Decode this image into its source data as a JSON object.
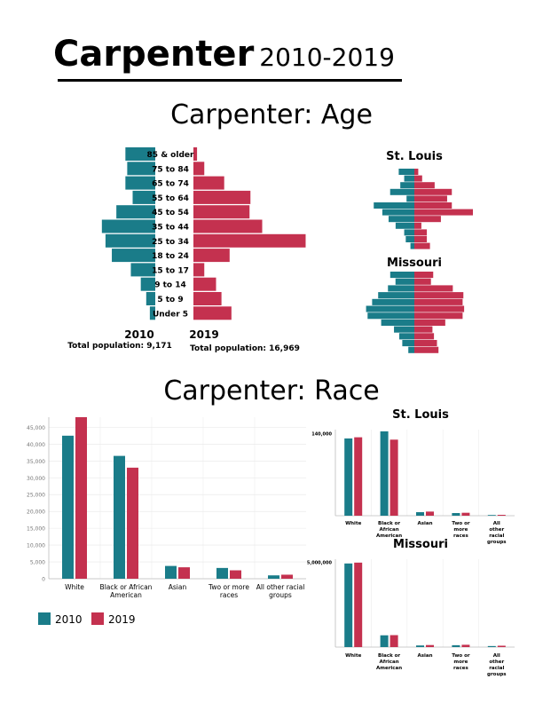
{
  "colors": {
    "c2010": "#1a7c89",
    "c2019": "#c4314f"
  },
  "header": {
    "name": "Carpenter",
    "years": "2010-2019"
  },
  "age_section": {
    "title": "Carpenter: Age"
  },
  "race_section": {
    "title": "Carpenter: Race"
  },
  "chart_data": [
    {
      "id": "carpenter-age",
      "type": "bar",
      "orientation": "population-pyramid",
      "categories": [
        "85 & older",
        "75 to 84",
        "65 to 74",
        "55 to 64",
        "45 to 54",
        "35 to 44",
        "25 to 34",
        "18 to 24",
        "15 to 17",
        "9 to 14",
        "5 to 9",
        "Under 5"
      ],
      "series": [
        {
          "name": "2010",
          "values": [
            3.3,
            3.1,
            3.3,
            2.5,
            4.3,
            5.9,
            5.5,
            4.8,
            2.7,
            1.6,
            1.0,
            0.6
          ]
        },
        {
          "name": "2019",
          "values": [
            0.4,
            1.2,
            3.4,
            6.3,
            6.2,
            7.6,
            12.4,
            4.0,
            1.2,
            2.5,
            3.1,
            4.2
          ]
        }
      ],
      "totals": [
        "Total population: 9,171",
        "Total population: 16,969"
      ]
    },
    {
      "id": "stlouis-age",
      "type": "bar",
      "orientation": "population-pyramid",
      "title": "St. Louis",
      "categories": [
        "85 & older",
        "75 to 84",
        "65 to 74",
        "55 to 64",
        "45 to 54",
        "35 to 44",
        "25 to 34",
        "18 to 24",
        "15 to 17",
        "9 to 14",
        "5 to 9",
        "Under 5"
      ],
      "series": [
        {
          "name": "2010",
          "values": [
            2.0,
            1.3,
            1.8,
            3.1,
            1.0,
            5.2,
            4.1,
            3.3,
            2.4,
            1.3,
            1.1,
            0.5
          ]
        },
        {
          "name": "2019",
          "values": [
            0.5,
            1.0,
            2.6,
            4.8,
            4.2,
            4.8,
            7.5,
            3.4,
            0.9,
            1.6,
            1.6,
            2.0
          ]
        }
      ]
    },
    {
      "id": "missouri-age",
      "type": "bar",
      "orientation": "population-pyramid",
      "title": "Missouri",
      "categories": [
        "85 & older",
        "75 to 84",
        "65 to 74",
        "55 to 64",
        "45 to 54",
        "35 to 44",
        "25 to 34",
        "18 to 24",
        "15 to 17",
        "9 to 14",
        "5 to 9",
        "Under 5"
      ],
      "series": [
        {
          "name": "2010",
          "values": [
            3.2,
            2.5,
            3.5,
            4.8,
            5.6,
            6.4,
            6.2,
            4.4,
            2.7,
            2.0,
            1.6,
            0.8
          ]
        },
        {
          "name": "2019",
          "values": [
            2.5,
            2.2,
            5.1,
            6.5,
            6.4,
            6.6,
            6.4,
            4.1,
            2.4,
            2.6,
            3.0,
            3.2
          ]
        }
      ]
    },
    {
      "id": "carpenter-race",
      "type": "bar",
      "categories": [
        "White",
        "Black or African American",
        "Asian",
        "Two or more races",
        "All other racial groups"
      ],
      "series": [
        {
          "name": "2010",
          "values": [
            42500,
            36500,
            3800,
            3200,
            1000
          ]
        },
        {
          "name": "2019",
          "values": [
            48000,
            33000,
            3400,
            2500,
            1200
          ]
        }
      ],
      "yticks": [
        "0",
        "5,000",
        "10,000",
        "15,000",
        "20,000",
        "25,000",
        "30,000",
        "35,000",
        "40,000",
        "45,000"
      ],
      "ylim": [
        0,
        48000
      ],
      "legend": [
        "2010",
        "2019"
      ]
    },
    {
      "id": "stlouis-race",
      "type": "bar",
      "title": "St. Louis",
      "categories": [
        "White",
        "Black or African American",
        "Asian",
        "Two or more races",
        "All other racial groups"
      ],
      "series": [
        {
          "name": "2010",
          "values": [
            131000,
            143000,
            6000,
            4500,
            1200
          ]
        },
        {
          "name": "2019",
          "values": [
            133000,
            129000,
            7000,
            5000,
            1500
          ]
        }
      ],
      "yticks": [
        "140,000"
      ],
      "ylim": [
        0,
        146000
      ]
    },
    {
      "id": "missouri-race",
      "type": "bar",
      "title": "Missouri",
      "categories": [
        "White",
        "Black or African American",
        "Asian",
        "Two or more races",
        "All other racial groups"
      ],
      "series": [
        {
          "name": "2010",
          "values": [
            4900000,
            690000,
            95000,
            110000,
            60000
          ]
        },
        {
          "name": "2019",
          "values": [
            4950000,
            700000,
            120000,
            135000,
            80000
          ]
        }
      ],
      "yticks": [
        "5,000,000"
      ],
      "ylim": [
        0,
        5150000
      ]
    }
  ]
}
